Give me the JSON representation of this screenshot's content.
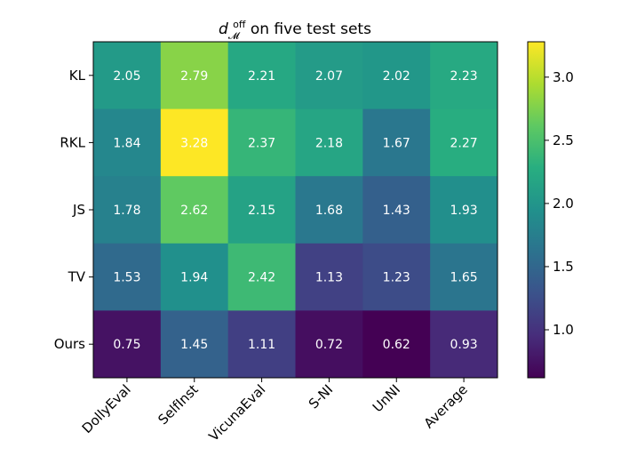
{
  "chart_data": {
    "type": "heatmap",
    "title": {
      "base": "d",
      "superscript": "off",
      "subscript": "𝓜",
      "suffix": " on five test sets"
    },
    "xlabel": "",
    "ylabel": "",
    "x_categories": [
      "DollyEval",
      "SelfInst",
      "VicunaEval",
      "S-NI",
      "UnNI",
      "Average"
    ],
    "y_categories": [
      "KL",
      "RKL",
      "JS",
      "TV",
      "Ours"
    ],
    "values": [
      [
        2.05,
        2.79,
        2.21,
        2.07,
        2.02,
        2.23
      ],
      [
        1.84,
        3.28,
        2.37,
        2.18,
        1.67,
        2.27
      ],
      [
        1.78,
        2.62,
        2.15,
        1.68,
        1.43,
        1.93
      ],
      [
        1.53,
        1.94,
        2.42,
        1.13,
        1.23,
        1.65
      ],
      [
        0.75,
        1.45,
        1.11,
        0.72,
        0.62,
        0.93
      ]
    ],
    "colormap": "viridis",
    "color_range": [
      0.62,
      3.28
    ],
    "colorbar": {
      "ticks": [
        1.0,
        1.5,
        2.0,
        2.5,
        3.0
      ],
      "tick_labels": [
        "1.0",
        "1.5",
        "2.0",
        "2.5",
        "3.0"
      ]
    },
    "cell_text_color": "#ffffff"
  }
}
